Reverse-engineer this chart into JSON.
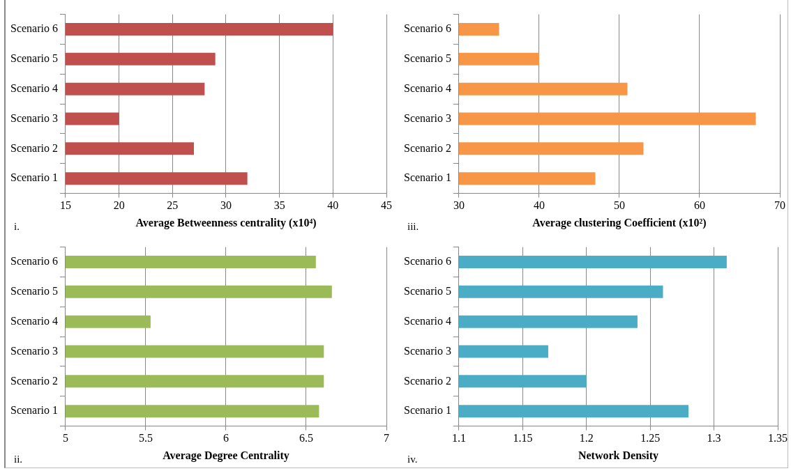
{
  "chart_data": [
    {
      "type": "bar",
      "orientation": "horizontal",
      "xlabel": "Average Betweenness centrality (x10⁴)",
      "annotations": [
        "i."
      ],
      "categories": [
        "Scenario 6",
        "Scenario 5",
        "Scenario 4",
        "Scenario 3",
        "Scenario 2",
        "Scenario 1"
      ],
      "values": [
        40,
        29,
        28,
        20,
        27,
        32
      ],
      "color": "#c0504d",
      "xlim": [
        15,
        45
      ],
      "xticks": [
        15,
        20,
        25,
        30,
        35,
        40,
        45
      ],
      "grid": "x"
    },
    {
      "type": "bar",
      "orientation": "horizontal",
      "xlabel": "Average clustering Coefficient (x10²)",
      "annotations": [
        "iii."
      ],
      "categories": [
        "Scenario 6",
        "Scenario 5",
        "Scenario 4",
        "Scenario 3",
        "Scenario 2",
        "Scenario 1"
      ],
      "values": [
        35,
        40,
        51,
        67,
        53,
        47
      ],
      "color": "#f79646",
      "xlim": [
        30,
        70
      ],
      "xticks": [
        30,
        40,
        50,
        60,
        70
      ],
      "grid": "x"
    },
    {
      "type": "bar",
      "orientation": "horizontal",
      "xlabel": "Average Degree Centrality",
      "annotations": [
        "ii."
      ],
      "categories": [
        "Scenario 6",
        "Scenario 5",
        "Scenario 4",
        "Scenario 3",
        "Scenario 2",
        "Scenario 1"
      ],
      "values": [
        6.56,
        6.66,
        5.53,
        6.61,
        6.61,
        6.58
      ],
      "color": "#9bbb59",
      "xlim": [
        5,
        7
      ],
      "xticks": [
        5,
        5.5,
        6,
        6.5,
        7
      ],
      "grid": "x"
    },
    {
      "type": "bar",
      "orientation": "horizontal",
      "xlabel": "Network Density",
      "annotations": [
        "iv."
      ],
      "categories": [
        "Scenario 6",
        "Scenario 5",
        "Scenario 4",
        "Scenario 3",
        "Scenario 2",
        "Scenario 1"
      ],
      "values": [
        1.31,
        1.26,
        1.24,
        1.17,
        1.2,
        1.28
      ],
      "color": "#4bacc6",
      "xlim": [
        1.1,
        1.35
      ],
      "xticks": [
        1.1,
        1.15,
        1.2,
        1.25,
        1.3,
        1.35
      ],
      "grid": "x"
    }
  ]
}
